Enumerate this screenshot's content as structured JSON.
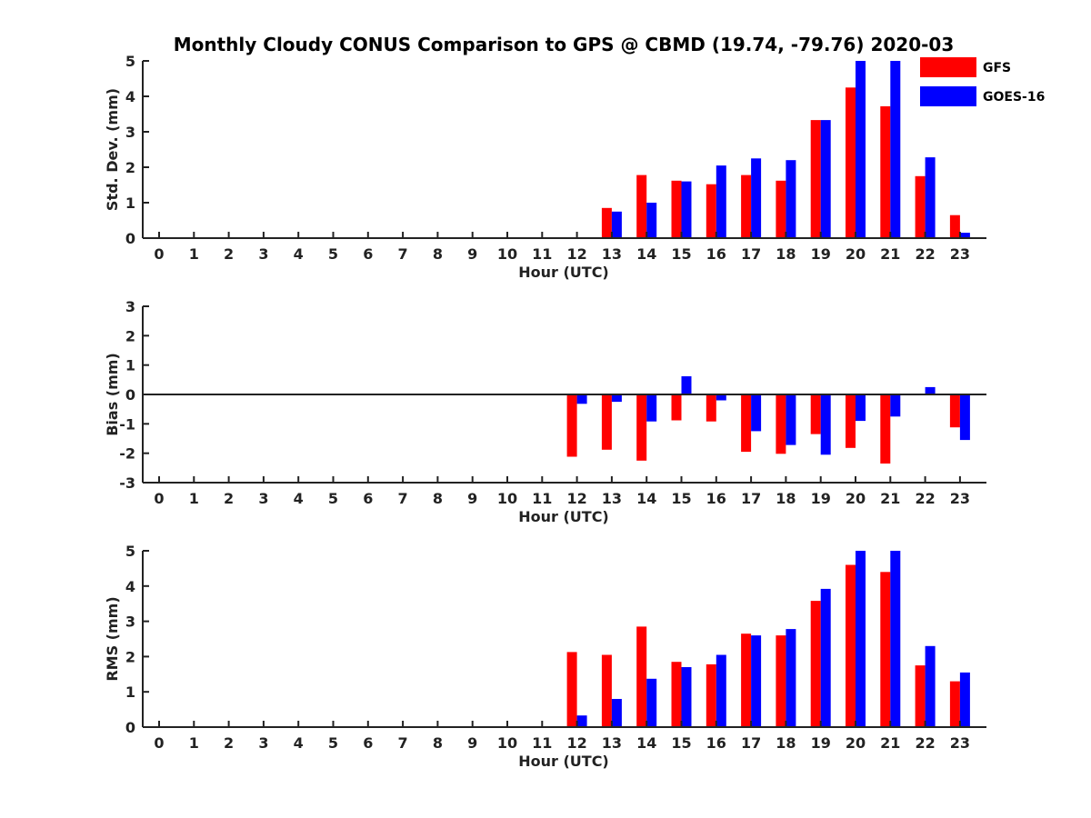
{
  "title": "Monthly Cloudy CONUS Comparison to GPS @ CBMD (19.74, -79.76) 2020-03",
  "colors": {
    "GFS": "#ff0000",
    "GOES-16": "#0000ff",
    "axis": "#222222"
  },
  "chart_data": [
    {
      "type": "bar",
      "xlabel": "Hour (UTC)",
      "ylabel": "Std. Dev. (mm)",
      "ylim": [
        0,
        5
      ],
      "yticks": [
        "0",
        "1",
        "2",
        "3",
        "4",
        "5"
      ],
      "categories": [
        "0",
        "1",
        "2",
        "3",
        "4",
        "5",
        "6",
        "7",
        "8",
        "9",
        "10",
        "11",
        "12",
        "13",
        "14",
        "15",
        "16",
        "17",
        "18",
        "19",
        "20",
        "21",
        "22",
        "23"
      ],
      "legend": "top-right",
      "series": [
        {
          "name": "GFS",
          "values": [
            null,
            null,
            null,
            null,
            null,
            null,
            null,
            null,
            null,
            null,
            null,
            null,
            null,
            0.85,
            1.78,
            1.62,
            1.52,
            1.78,
            1.62,
            3.33,
            4.25,
            3.72,
            1.75,
            0.65
          ]
        },
        {
          "name": "GOES-16",
          "values": [
            null,
            null,
            null,
            null,
            null,
            null,
            null,
            null,
            null,
            null,
            null,
            null,
            null,
            0.75,
            1.0,
            1.6,
            2.05,
            2.25,
            2.2,
            3.33,
            5.0,
            5.0,
            2.28,
            0.15
          ]
        }
      ]
    },
    {
      "type": "bar",
      "xlabel": "Hour (UTC)",
      "ylabel": "Bias (mm)",
      "ylim": [
        -3,
        3
      ],
      "yticks": [
        "-3",
        "-2",
        "-1",
        "0",
        "1",
        "2",
        "3"
      ],
      "zero_line": true,
      "categories": [
        "0",
        "1",
        "2",
        "3",
        "4",
        "5",
        "6",
        "7",
        "8",
        "9",
        "10",
        "11",
        "12",
        "13",
        "14",
        "15",
        "16",
        "17",
        "18",
        "19",
        "20",
        "21",
        "22",
        "23"
      ],
      "series": [
        {
          "name": "GFS",
          "values": [
            null,
            null,
            null,
            null,
            null,
            null,
            null,
            null,
            null,
            null,
            null,
            null,
            -2.12,
            -1.88,
            -2.25,
            -0.88,
            -0.92,
            -1.95,
            -2.02,
            -1.35,
            -1.82,
            -2.35,
            0.02,
            -1.12
          ]
        },
        {
          "name": "GOES-16",
          "values": [
            null,
            null,
            null,
            null,
            null,
            null,
            null,
            null,
            null,
            null,
            null,
            null,
            -0.32,
            -0.25,
            -0.92,
            0.62,
            -0.2,
            -1.25,
            -1.72,
            -2.05,
            -0.9,
            -0.75,
            0.25,
            -1.55
          ]
        }
      ]
    },
    {
      "type": "bar",
      "xlabel": "Hour (UTC)",
      "ylabel": "RMS (mm)",
      "ylim": [
        0,
        5
      ],
      "yticks": [
        "0",
        "1",
        "2",
        "3",
        "4",
        "5"
      ],
      "categories": [
        "0",
        "1",
        "2",
        "3",
        "4",
        "5",
        "6",
        "7",
        "8",
        "9",
        "10",
        "11",
        "12",
        "13",
        "14",
        "15",
        "16",
        "17",
        "18",
        "19",
        "20",
        "21",
        "22",
        "23"
      ],
      "series": [
        {
          "name": "GFS",
          "values": [
            null,
            null,
            null,
            null,
            null,
            null,
            null,
            null,
            null,
            null,
            null,
            null,
            2.13,
            2.05,
            2.85,
            1.85,
            1.78,
            2.65,
            2.6,
            3.58,
            4.6,
            4.4,
            1.75,
            1.3
          ]
        },
        {
          "name": "GOES-16",
          "values": [
            null,
            null,
            null,
            null,
            null,
            null,
            null,
            null,
            null,
            null,
            null,
            null,
            0.33,
            0.8,
            1.37,
            1.7,
            2.05,
            2.6,
            2.78,
            3.92,
            5.0,
            5.0,
            2.3,
            1.55
          ]
        }
      ]
    }
  ]
}
